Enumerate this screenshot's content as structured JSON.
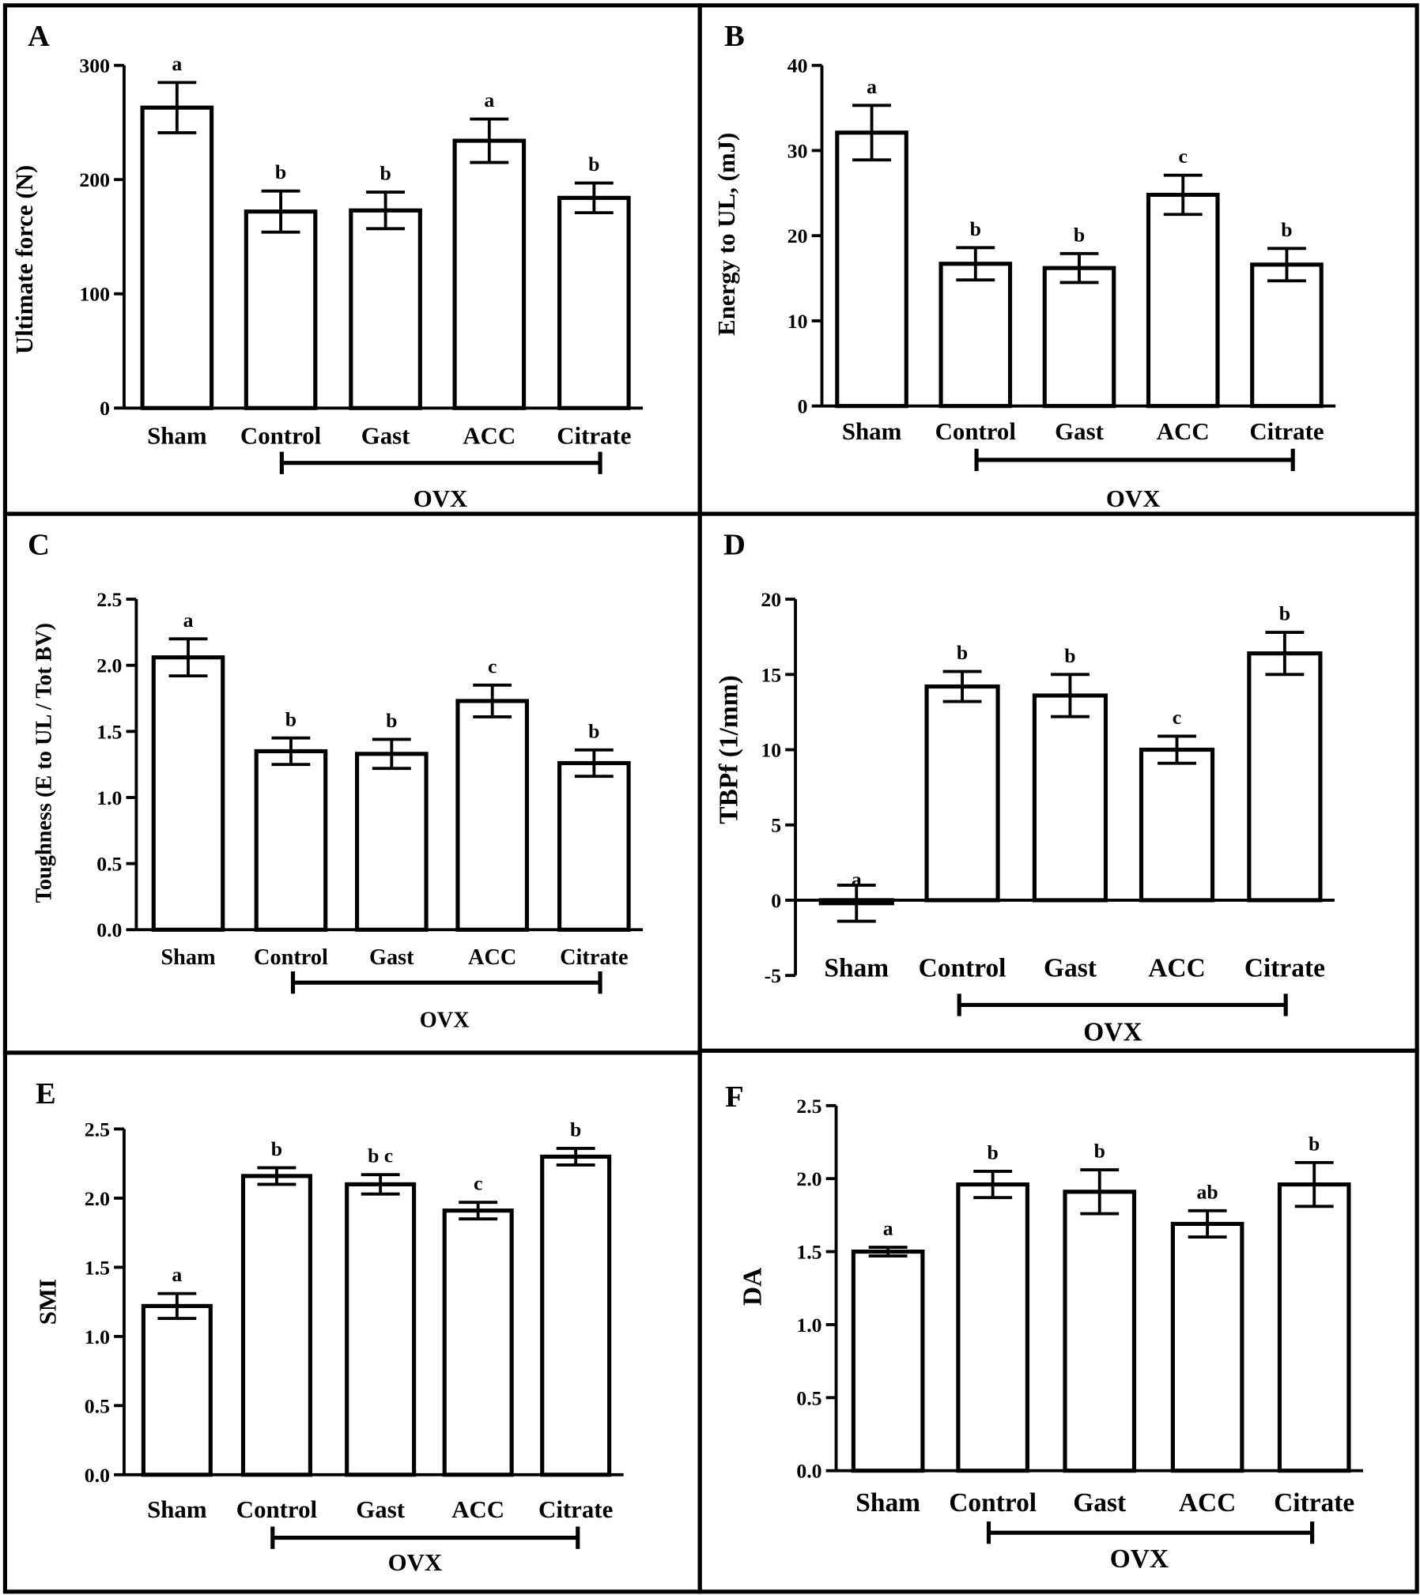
{
  "chart_data": [
    {
      "panel": "A",
      "type": "bar",
      "ylabel": "Ultimate force (N)",
      "ylim": [
        0,
        300
      ],
      "yticks": [
        0,
        100,
        200,
        300
      ],
      "categories": [
        "Sham",
        "Control",
        "Gast",
        "ACC",
        "Citrate"
      ],
      "values": [
        263,
        172,
        173,
        234,
        184
      ],
      "errors": [
        22,
        18,
        16,
        19,
        13
      ],
      "letters": [
        "a",
        "b",
        "b",
        "a",
        "b"
      ],
      "group_label": "OVX"
    },
    {
      "panel": "B",
      "type": "bar",
      "ylabel": "Energy to UL, (mJ)",
      "ylim": [
        0,
        40
      ],
      "yticks": [
        0,
        10,
        20,
        30,
        40
      ],
      "categories": [
        "Sham",
        "Control",
        "Gast",
        "ACC",
        "Citrate"
      ],
      "values": [
        32.1,
        16.7,
        16.2,
        24.8,
        16.6
      ],
      "errors": [
        3.2,
        1.9,
        1.7,
        2.3,
        1.9
      ],
      "letters": [
        "a",
        "b",
        "b",
        "c",
        "b"
      ],
      "group_label": "OVX"
    },
    {
      "panel": "C",
      "type": "bar",
      "ylabel": "Toughness (E to UL / Tot BV)",
      "ylim": [
        0,
        2.5
      ],
      "yticks": [
        "0.0",
        "0.5",
        "1.0",
        "1.5",
        "2.0",
        "2.5"
      ],
      "categories": [
        "Sham",
        "Control",
        "Gast",
        "ACC",
        "Citrate"
      ],
      "values": [
        2.06,
        1.35,
        1.33,
        1.73,
        1.26
      ],
      "errors": [
        0.14,
        0.1,
        0.11,
        0.12,
        0.1
      ],
      "letters": [
        "a",
        "b",
        "b",
        "c",
        "b"
      ],
      "group_label": "OVX"
    },
    {
      "panel": "D",
      "type": "bar",
      "ylabel": "TBPf (1/mm)",
      "ylim": [
        -5,
        20
      ],
      "yticks": [
        -5,
        0,
        5,
        10,
        15,
        20
      ],
      "categories": [
        "Sham",
        "Control",
        "Gast",
        "ACC",
        "Citrate"
      ],
      "values": [
        -0.2,
        14.2,
        13.6,
        10.0,
        16.4
      ],
      "errors": [
        1.2,
        1.0,
        1.4,
        0.9,
        1.4
      ],
      "letters": [
        "a",
        "b",
        "b",
        "c",
        "b"
      ],
      "group_label": "OVX"
    },
    {
      "panel": "E",
      "type": "bar",
      "ylabel": "SMI",
      "ylim": [
        0,
        2.5
      ],
      "yticks": [
        "0.0",
        "0.5",
        "1.0",
        "1.5",
        "2.0",
        "2.5"
      ],
      "categories": [
        "Sham",
        "Control",
        "Gast",
        "ACC",
        "Citrate"
      ],
      "values": [
        1.22,
        2.16,
        2.1,
        1.91,
        2.3
      ],
      "errors": [
        0.09,
        0.06,
        0.07,
        0.06,
        0.06
      ],
      "letters": [
        "a",
        "b",
        "b c",
        "c",
        "b"
      ],
      "group_label": "OVX"
    },
    {
      "panel": "F",
      "type": "bar",
      "ylabel": "DA",
      "ylim": [
        0,
        2.5
      ],
      "yticks": [
        "0.0",
        "0.5",
        "1.0",
        "1.5",
        "2.0",
        "2.5"
      ],
      "categories": [
        "Sham",
        "Control",
        "Gast",
        "ACC",
        "Citrate"
      ],
      "values": [
        1.5,
        1.96,
        1.91,
        1.69,
        1.96
      ],
      "errors": [
        0.03,
        0.09,
        0.15,
        0.09,
        0.15
      ],
      "letters": [
        "a",
        "b",
        "b",
        "ab",
        "b"
      ],
      "group_label": "OVX"
    }
  ]
}
